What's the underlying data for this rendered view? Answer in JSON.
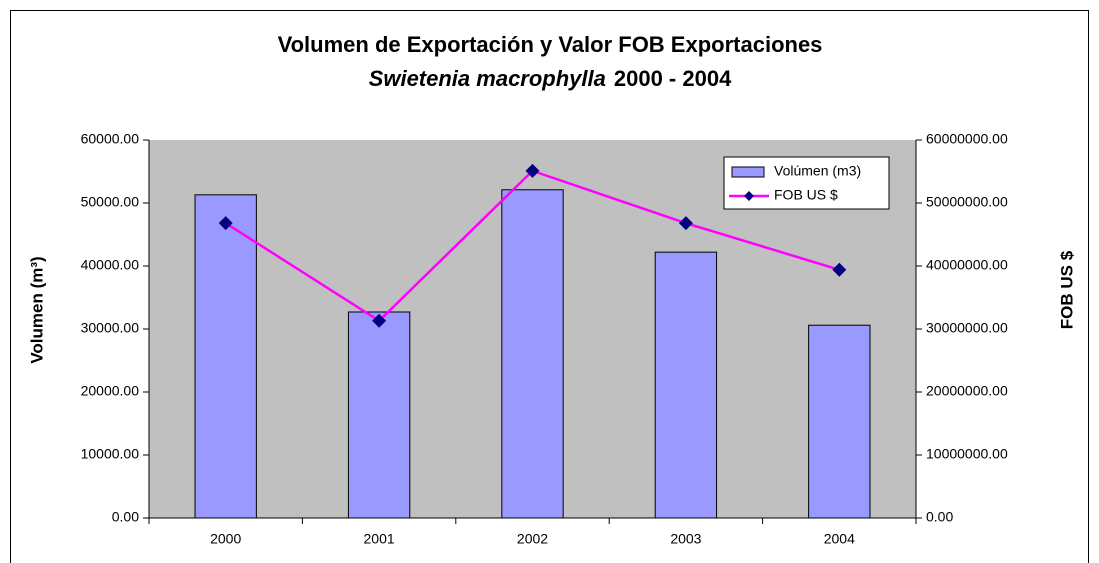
{
  "chart_data": {
    "type": "bar_line",
    "title": "Volumen de Exportación y Valor FOB Exportaciones",
    "subtitle": {
      "species": "Swietenia macrophylla",
      "years": "2000 - 2004"
    },
    "y_label": "Volumen (m³)",
    "y2_label": "FOB US $",
    "categories": [
      "2000",
      "2001",
      "2002",
      "2003",
      "2004"
    ],
    "series": [
      {
        "name": "Volúmen (m3)",
        "type": "bar",
        "color": "#9999ff",
        "values": [
          51300,
          32700,
          52100,
          42200,
          30600
        ]
      },
      {
        "name": "FOB US $",
        "type": "line",
        "color": "#ff00ff",
        "marker_color": "#000080",
        "axis": "y2",
        "values": [
          46800000,
          31300000,
          55100000,
          46800000,
          39400000
        ]
      }
    ],
    "ylim": [
      0,
      60000
    ],
    "yticks": [
      {
        "value": 0,
        "label": "0.00"
      },
      {
        "value": 10000,
        "label": "10000.00"
      },
      {
        "value": 20000,
        "label": "20000.00"
      },
      {
        "value": 30000,
        "label": "30000.00"
      },
      {
        "value": 40000,
        "label": "40000.00"
      },
      {
        "value": 50000,
        "label": "50000.00"
      },
      {
        "value": 60000,
        "label": "60000.00"
      }
    ],
    "y2lim": [
      0,
      60000000
    ],
    "y2ticks": [
      {
        "value": 0,
        "label": "0.00"
      },
      {
        "value": 10000000,
        "label": "10000000.00"
      },
      {
        "value": 20000000,
        "label": "20000000.00"
      },
      {
        "value": 30000000,
        "label": "30000000.00"
      },
      {
        "value": 40000000,
        "label": "40000000.00"
      },
      {
        "value": 50000000,
        "label": "50000000.00"
      },
      {
        "value": 60000000,
        "label": "60000000.00"
      }
    ],
    "legend": "upper right",
    "plot_background": "#c0c0c0"
  }
}
